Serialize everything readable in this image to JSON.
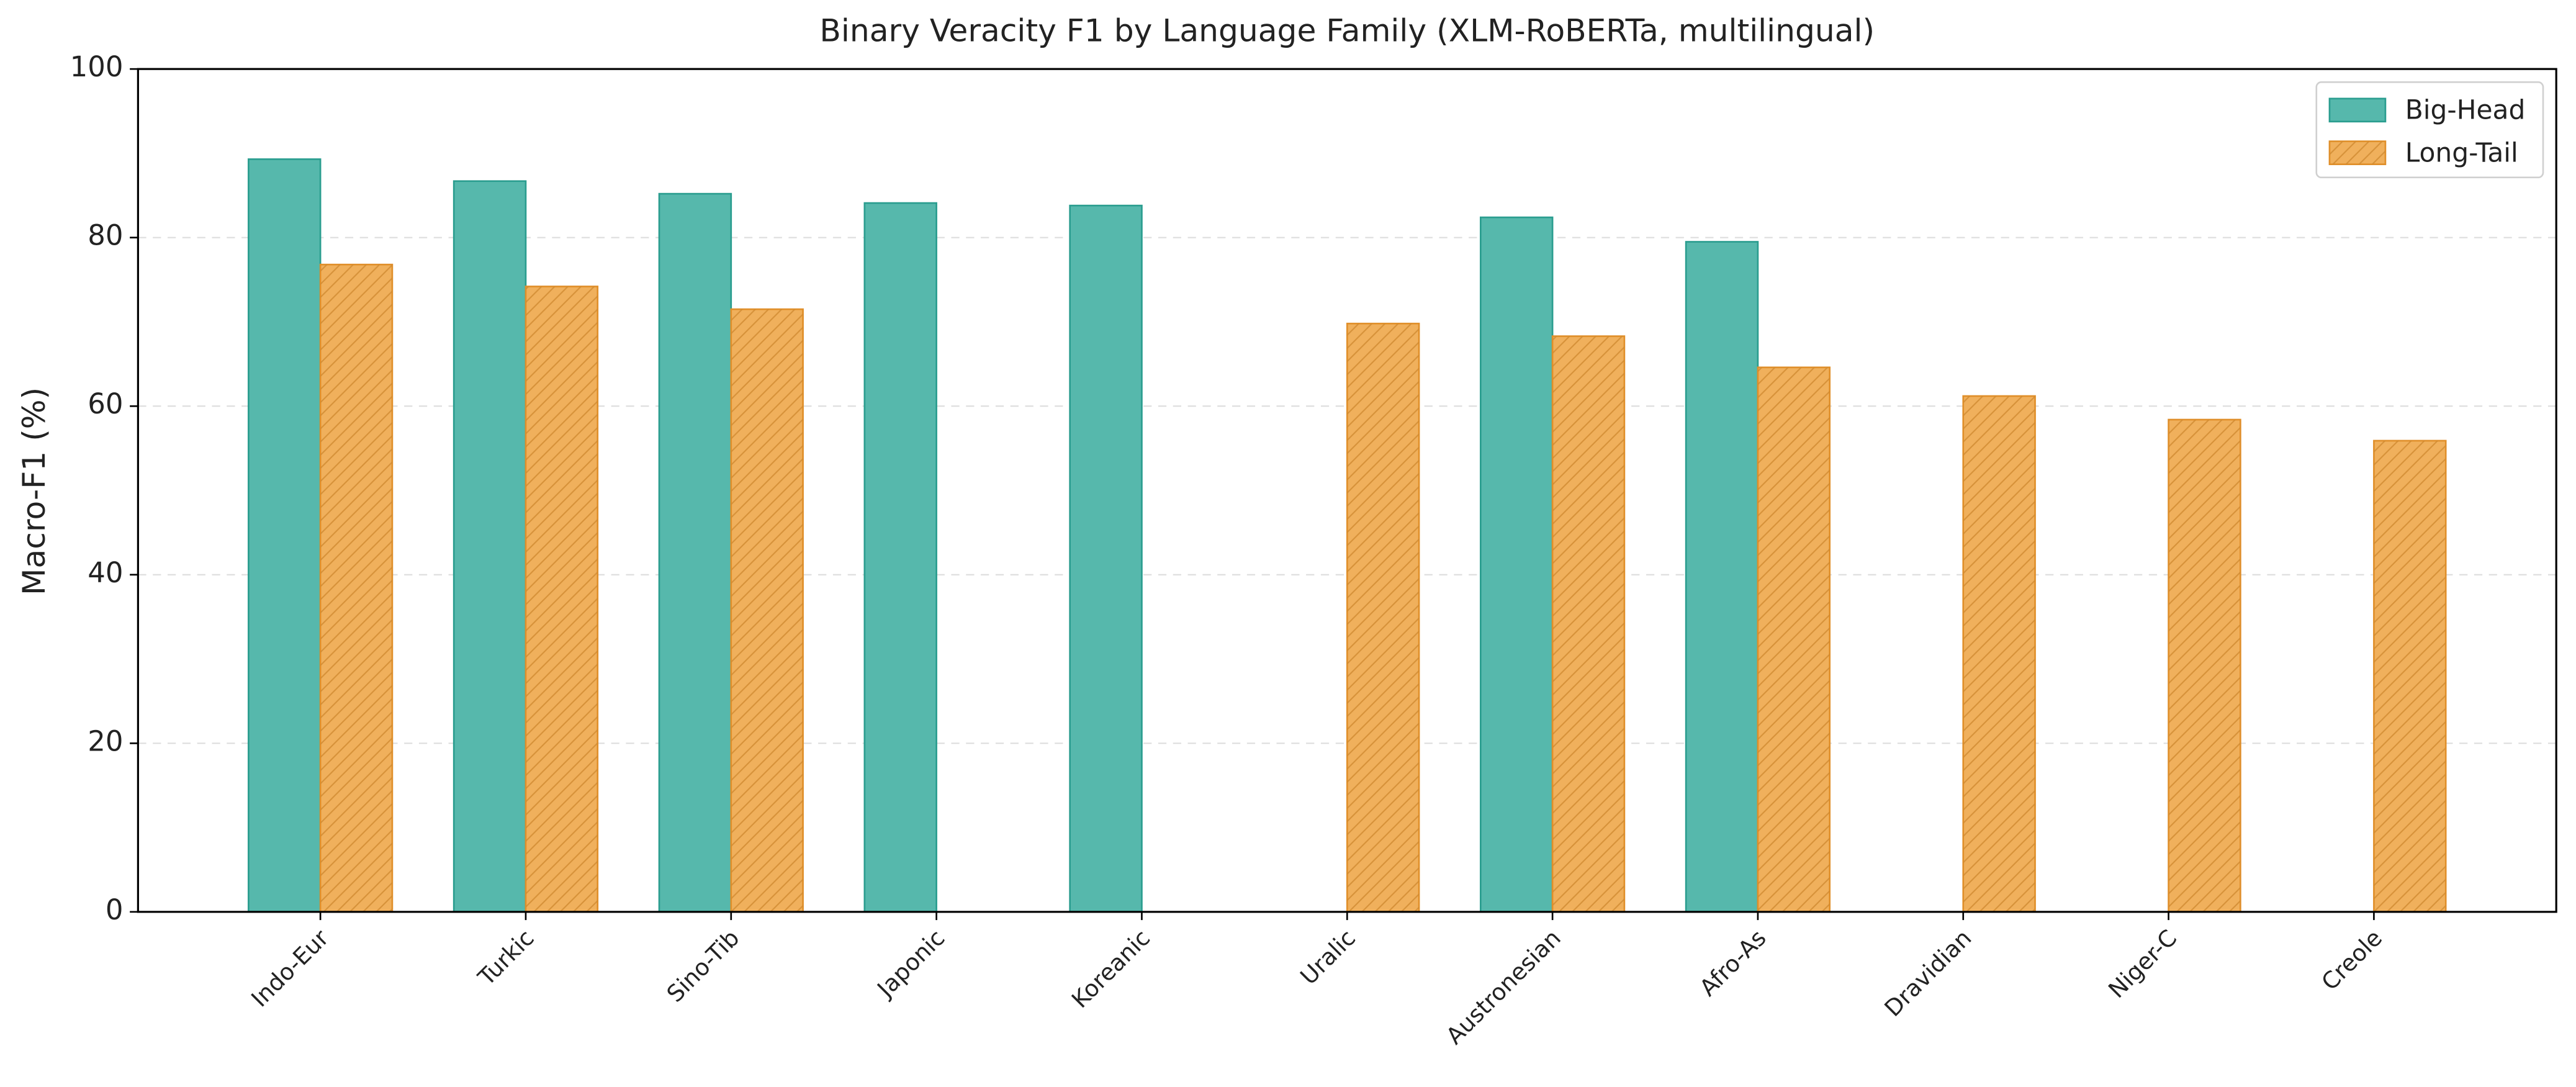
{
  "chart_data": {
    "type": "bar",
    "title": "Binary Veracity F1 by Language Family (XLM-RoBERTa, multilingual)",
    "y_label": "Macro-F1 (%)",
    "categories": [
      "Indo-Eur",
      "Turkic",
      "Sino-Tib",
      "Japonic",
      "Koreanic",
      "Uralic",
      "Austronesian",
      "Afro-As",
      "Dravidian",
      "Niger-C",
      "Creole"
    ],
    "series": [
      {
        "name": "Big-Head",
        "color": "#56b8ac",
        "edgecolor": "#2a9d8f",
        "hatch": false,
        "values": [
          89.3,
          86.7,
          85.2,
          84.1,
          83.8,
          null,
          82.4,
          79.5,
          null,
          null,
          null
        ]
      },
      {
        "name": "Long-Tail",
        "color": "#f0b05c",
        "edgecolor": "#e08f2a",
        "hatch": true,
        "values": [
          76.8,
          74.2,
          71.5,
          null,
          null,
          69.8,
          68.3,
          64.6,
          61.2,
          58.4,
          55.9
        ]
      }
    ],
    "ylim": [
      0,
      100
    ],
    "yticks": [
      0,
      20,
      40,
      60,
      80,
      100
    ],
    "grid": true,
    "legend": "upper right"
  }
}
